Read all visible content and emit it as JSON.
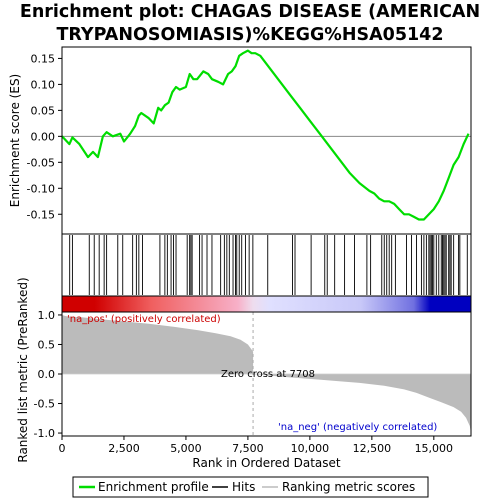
{
  "chart_data": [
    {
      "type": "line",
      "title_lines": [
        "Enrichment plot: CHAGAS DISEASE (AMERICAN",
        "TRYPANOSOMIASIS)%KEGG%HSA05142"
      ],
      "ylabel": "Enrichment score (ES)",
      "xlim": [
        0,
        16500
      ],
      "ylim": [
        -0.188,
        0.172
      ],
      "yticks": [
        0.15,
        0.1,
        0.05,
        0.0,
        -0.05,
        -0.1,
        -0.15
      ],
      "ytick_labels": [
        "0.15",
        "0.10",
        "0.05",
        "0.00",
        "-0.05",
        "-0.10",
        "-0.15"
      ],
      "series": [
        {
          "name": "Enrichment profile",
          "color": "#00dd00",
          "x": [
            0,
            300,
            420,
            700,
            1050,
            1250,
            1450,
            1650,
            1800,
            2050,
            2350,
            2500,
            2750,
            2950,
            3100,
            3200,
            3500,
            3700,
            3880,
            4000,
            4150,
            4300,
            4450,
            4600,
            4750,
            5000,
            5150,
            5300,
            5450,
            5700,
            5900,
            6050,
            6300,
            6500,
            6700,
            6850,
            7000,
            7150,
            7300,
            7500,
            7650,
            7800,
            8000,
            8400,
            8800,
            9200,
            9600,
            10000,
            10400,
            10800,
            11200,
            11600,
            12000,
            12400,
            12600,
            12800,
            13000,
            13200,
            13400,
            13600,
            13800,
            14000,
            14200,
            14400,
            14600,
            14800,
            15000,
            15200,
            15400,
            15600,
            15800,
            16000,
            16200,
            16400
          ],
          "y": [
            0.0,
            -0.015,
            -0.002,
            -0.015,
            -0.04,
            -0.03,
            -0.04,
            0.0,
            0.008,
            0.0,
            0.005,
            -0.01,
            0.005,
            0.02,
            0.04,
            0.045,
            0.035,
            0.025,
            0.055,
            0.05,
            0.06,
            0.065,
            0.085,
            0.095,
            0.09,
            0.095,
            0.12,
            0.11,
            0.11,
            0.125,
            0.12,
            0.11,
            0.105,
            0.1,
            0.12,
            0.125,
            0.135,
            0.155,
            0.16,
            0.165,
            0.16,
            0.16,
            0.155,
            0.13,
            0.105,
            0.08,
            0.055,
            0.03,
            0.005,
            -0.02,
            -0.045,
            -0.07,
            -0.09,
            -0.105,
            -0.11,
            -0.12,
            -0.125,
            -0.125,
            -0.13,
            -0.14,
            -0.15,
            -0.15,
            -0.155,
            -0.16,
            -0.16,
            -0.15,
            -0.14,
            -0.125,
            -0.105,
            -0.08,
            -0.055,
            -0.04,
            -0.015,
            0.005
          ]
        }
      ]
    },
    {
      "type": "hits",
      "legend_name": "Hits",
      "xlim": [
        0,
        16500
      ],
      "x": [
        310,
        420,
        1100,
        1300,
        1500,
        1700,
        1800,
        2250,
        2450,
        2850,
        3000,
        3100,
        3250,
        3950,
        4150,
        4250,
        4400,
        4500,
        4600,
        5050,
        5150,
        5200,
        5250,
        5550,
        5650,
        5850,
        6050,
        6400,
        6550,
        6650,
        6750,
        6900,
        7000,
        7050,
        7150,
        7250,
        7400,
        7550,
        7700,
        8300,
        9300,
        9400,
        10050,
        10600,
        10700,
        11000,
        11400,
        11800,
        12300,
        12450,
        12900,
        13000,
        13100,
        13200,
        13300,
        13450,
        13900,
        14100,
        14300,
        14500,
        14600,
        14700,
        14800,
        14850,
        14900,
        14950,
        15000,
        15100,
        15200,
        15300,
        15350,
        15400,
        15450,
        15500,
        15600,
        15650,
        15700,
        15800,
        16000,
        16050,
        16350
      ]
    },
    {
      "type": "area",
      "ylabel": "Ranked list metric (PreRanked)",
      "xlabel": "Rank in Ordered Dataset",
      "xlim": [
        0,
        16500
      ],
      "ylim": [
        -1.05,
        1.05
      ],
      "yticks": [
        1.0,
        0.5,
        0.0,
        -0.5,
        -1.0
      ],
      "ytick_labels": [
        "1.0",
        "0.5",
        "0.0",
        "-0.5",
        "-1.0"
      ],
      "xticks": [
        0,
        2500,
        5000,
        7500,
        10000,
        12500,
        15000
      ],
      "xtick_labels": [
        "0",
        "2,500",
        "5,000",
        "7,500",
        "10,000",
        "12,500",
        "15,000"
      ],
      "zero_cross": 7708,
      "zero_cross_label": "Zero cross at 7708",
      "pos_label": "'na_pos' (positively correlated)",
      "neg_label": "'na_neg' (negatively correlated)",
      "series": [
        {
          "name": "Ranking metric scores",
          "color": "#bbbbbb",
          "x": [
            0,
            150,
            400,
            800,
            1500,
            2500,
            3500,
            4500,
            5500,
            6200,
            6800,
            7200,
            7500,
            7708,
            7708,
            9000,
            10500,
            12000,
            13000,
            13800,
            14300,
            14800,
            15300,
            15800,
            16100,
            16300,
            16450,
            16500
          ],
          "y": [
            1.0,
            0.98,
            0.97,
            0.96,
            0.93,
            0.89,
            0.85,
            0.8,
            0.74,
            0.69,
            0.64,
            0.58,
            0.5,
            0.38,
            0.0,
            -0.05,
            -0.1,
            -0.15,
            -0.2,
            -0.26,
            -0.32,
            -0.4,
            -0.48,
            -0.56,
            -0.64,
            -0.74,
            -0.88,
            -1.0
          ]
        }
      ]
    }
  ],
  "legend": [
    {
      "label": "Enrichment profile",
      "color": "#00dd00"
    },
    {
      "label": "Hits",
      "color": "#000000"
    },
    {
      "label": "Ranking metric scores",
      "color": "#bbbbbb"
    }
  ],
  "colors": {
    "pos_text": "#cc0000",
    "neg_text": "#0000cc",
    "heat_pos": "#d00000",
    "heat_neg": "#0000c0",
    "heat_mid": "#ffffff",
    "frame": "#000000",
    "grid_zero": "#888888"
  }
}
